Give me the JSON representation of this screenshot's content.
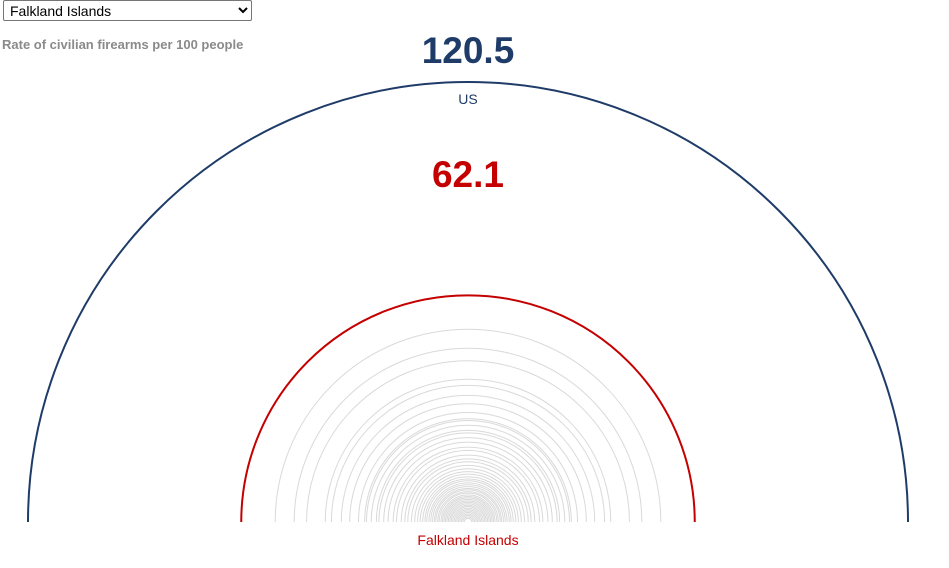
{
  "selector": {
    "selected": "Falkland Islands",
    "options": [
      "Falkland Islands"
    ]
  },
  "colors": {
    "us": "#1f3c69",
    "selected": "#c40000",
    "background_rings": "#d9d9d9",
    "subtitle": "#8a8a8a"
  },
  "chart_data": {
    "type": "semicircle-rings",
    "subtitle": "Rate of civilian firearms per 100 people",
    "highlight": {
      "name": "US",
      "value": 120.5,
      "value_label": "120.5"
    },
    "selected": {
      "name": "Falkland Islands",
      "value": 62.1,
      "value_label": "62.1"
    },
    "background_values": [
      52.8,
      47.6,
      44.2,
      39.1,
      37.4,
      34.7,
      32.4,
      30.0,
      28.3,
      27.8,
      26.5,
      25.1,
      24.4,
      23.1,
      21.9,
      20.5,
      19.6,
      18.3,
      17.3,
      16.5,
      15.5,
      14.6,
      13.8,
      13.1,
      12.4,
      11.8,
      11.3,
      10.7,
      10.2,
      9.7,
      9.2,
      8.8,
      8.3,
      7.9,
      7.4,
      7.0,
      6.6,
      6.2,
      5.8,
      5.4,
      5.0,
      4.6,
      4.2,
      3.8,
      3.4,
      3.0,
      2.6,
      2.2,
      1.8,
      1.4,
      1.0
    ]
  }
}
